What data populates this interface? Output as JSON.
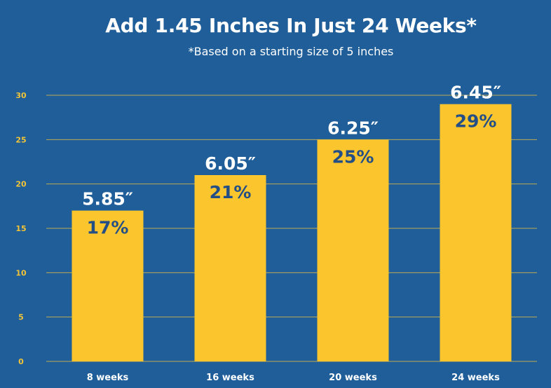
{
  "chart_data": {
    "type": "bar",
    "title": "Add 1.45 Inches In Just 24 Weeks*",
    "subtitle": "*Based on a starting size of 5 inches",
    "categories": [
      "8 weeks",
      "16 weeks",
      "20 weeks",
      "24 weeks"
    ],
    "values": [
      17,
      21,
      25,
      29
    ],
    "value_labels": [
      "17%",
      "21%",
      "25%",
      "29%"
    ],
    "top_labels": [
      "5.85″",
      "6.05″",
      "6.25″",
      "6.45″"
    ],
    "xlabel": "",
    "ylabel": "",
    "ylim": [
      0,
      30
    ],
    "yticks": [
      0,
      5,
      10,
      15,
      20,
      25,
      30
    ],
    "grid": true,
    "colors": {
      "background": "#1f5e99",
      "bar": "#fbc52d",
      "grid": "#d9b84a",
      "tick_label": "#f3c437",
      "value_label": "#244f86",
      "text": "#ffffff"
    }
  }
}
